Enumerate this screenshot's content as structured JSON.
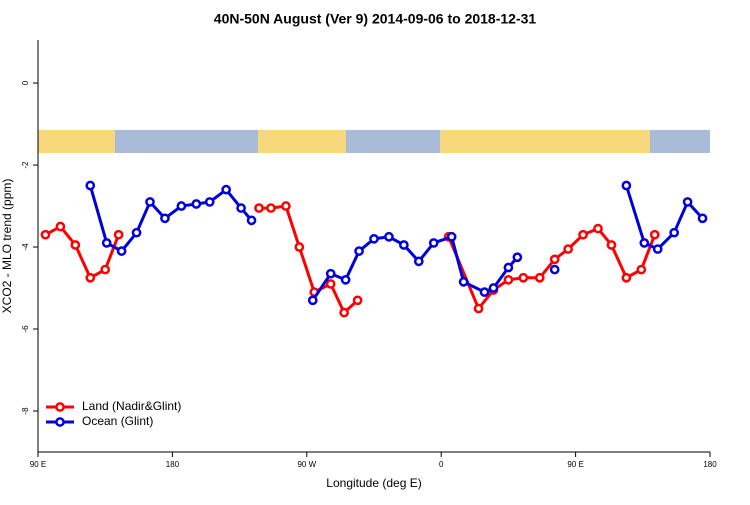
{
  "chart_data": {
    "type": "line",
    "title": "40N-50N August (Ver 9)   2014-09-06 to 2018-12-31",
    "x_label": "Longitude (deg E)",
    "y_label": "XCO2 - MLO trend (ppm)",
    "xlim": [
      90,
      540
    ],
    "xticks": [
      {
        "value": 90,
        "label": "90 E"
      },
      {
        "value": 180,
        "label": "180"
      },
      {
        "value": 270,
        "label": "90 W"
      },
      {
        "value": 360,
        "label": "0"
      },
      {
        "value": 450,
        "label": "90 E"
      },
      {
        "value": 540,
        "label": "180"
      }
    ],
    "ylim": [
      -9,
      1.05
    ],
    "yticks": [
      0,
      -2,
      -4,
      -6,
      -8
    ],
    "legend": "bottom-left",
    "series": [
      {
        "name": "Land (Nadir&Glint)",
        "color": "#ff0000",
        "x": [
          95,
          105,
          115,
          125,
          135,
          144,
          180,
          238,
          246,
          256,
          265,
          275,
          286,
          295,
          304,
          330,
          365,
          385,
          395,
          405,
          415,
          426,
          436,
          445,
          455,
          465,
          474,
          484,
          494,
          503
        ],
        "values": [
          -3.7,
          -3.5,
          -3.95,
          -4.75,
          -4.55,
          -3.7,
          null,
          -3.05,
          -3.05,
          -3.0,
          -4.0,
          -5.1,
          -4.9,
          -5.6,
          -5.3,
          null,
          -3.75,
          -5.5,
          -5.05,
          -4.8,
          -4.75,
          -4.75,
          -4.3,
          -4.05,
          -3.7,
          -3.55,
          -3.95,
          -4.75,
          -4.55,
          -3.7
        ]
      },
      {
        "name": "Ocean (Glint)",
        "color": "#0000dd",
        "x": [
          125,
          136,
          146,
          156,
          165,
          175,
          186,
          196,
          205,
          216,
          226,
          233,
          255,
          274,
          286,
          296,
          305,
          315,
          325,
          335,
          345,
          355,
          367,
          375,
          389,
          395,
          405,
          411,
          425,
          436,
          460,
          484,
          496,
          505,
          516,
          525,
          535
        ],
        "values": [
          -2.5,
          -3.9,
          -4.1,
          -3.65,
          -2.9,
          -3.3,
          -3.0,
          -2.95,
          -2.9,
          -2.6,
          -3.05,
          -3.35,
          null,
          -5.3,
          -4.65,
          -4.8,
          -4.1,
          -3.8,
          -3.75,
          -3.95,
          -4.35,
          -3.9,
          -3.75,
          -4.85,
          -5.1,
          -5.0,
          -4.5,
          -4.25,
          null,
          -4.55,
          null,
          -2.5,
          -3.9,
          -4.05,
          -3.65,
          -2.9,
          -3.3
        ]
      }
    ]
  }
}
